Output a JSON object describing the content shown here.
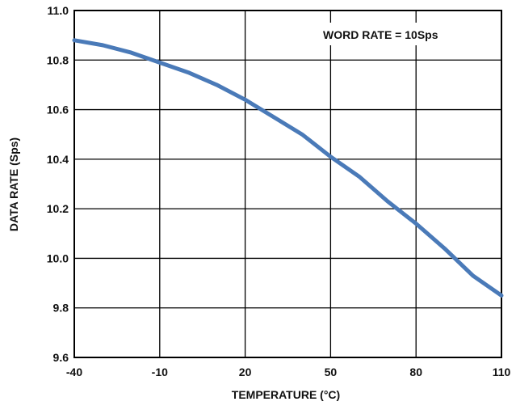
{
  "chart_data": {
    "type": "line",
    "title": "",
    "xlabel": "TEMPERATURE (°C)",
    "ylabel": "DATA RATE (Sps)",
    "annotation": "WORD RATE = 10Sps",
    "xlim": [
      -40,
      110
    ],
    "ylim": [
      9.6,
      11.0
    ],
    "x_ticks": [
      -40,
      -10,
      20,
      50,
      80,
      110
    ],
    "x_tick_labels": [
      "-40",
      "-10",
      "20",
      "50",
      "80",
      "110"
    ],
    "y_ticks": [
      9.6,
      9.8,
      10.0,
      10.2,
      10.4,
      10.6,
      10.8,
      11.0
    ],
    "y_tick_labels": [
      "9.6",
      "9.8",
      "10.0",
      "10.2",
      "10.4",
      "10.6",
      "10.8",
      "11.0"
    ],
    "grid": true,
    "line_color": "#4a7ab8",
    "series": [
      {
        "x": [
          -40,
          -30,
          -20,
          -10,
          0,
          10,
          20,
          30,
          40,
          50,
          60,
          70,
          80,
          90,
          100,
          110
        ],
        "y": [
          10.88,
          10.86,
          10.83,
          10.79,
          10.75,
          10.7,
          10.64,
          10.57,
          10.5,
          10.41,
          10.33,
          10.23,
          10.14,
          10.04,
          9.93,
          9.85
        ]
      }
    ]
  }
}
